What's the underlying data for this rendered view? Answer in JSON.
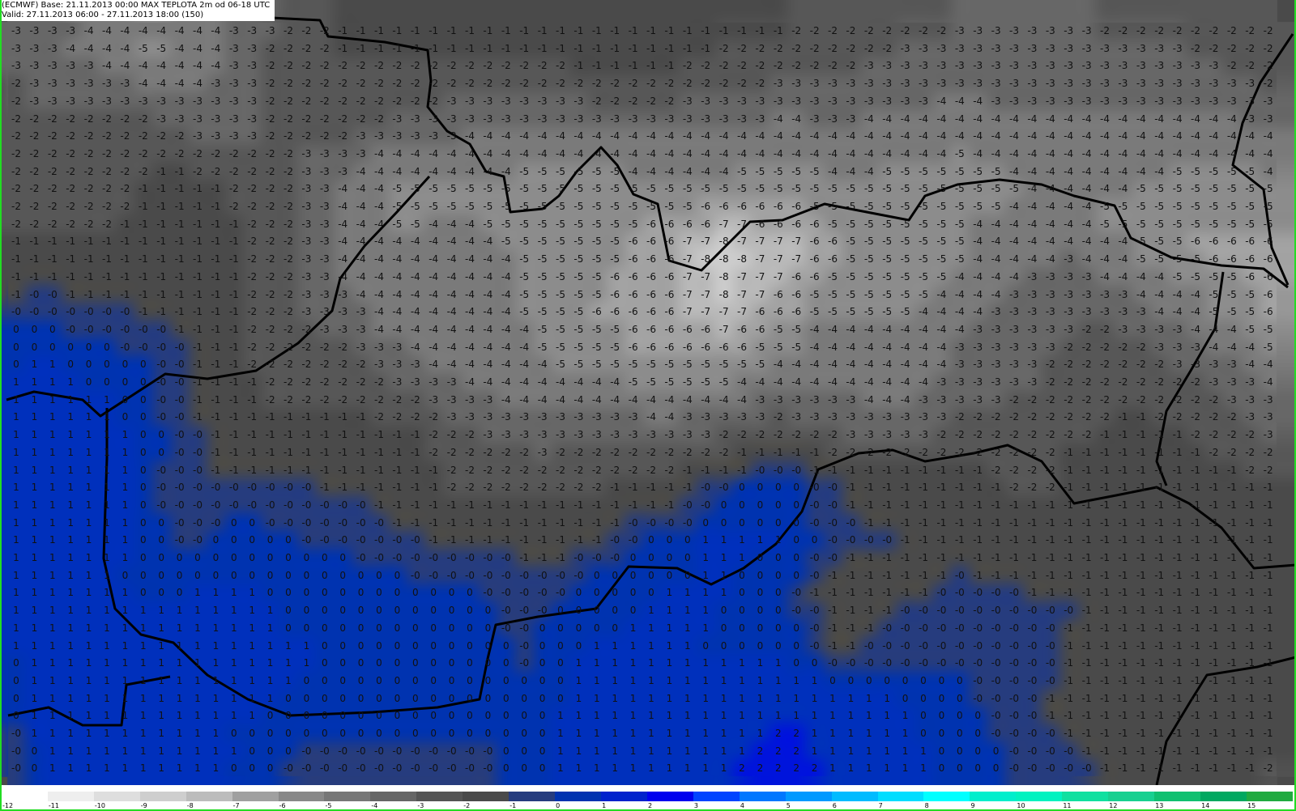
{
  "header": {
    "line1": "(ECMWF) Base: 21.11.2013 00:00 MAX TEPLOTA 2m od 06-18 UTC",
    "line2": "Valid: 27.11.2013 06:00 - 27.11.2013 18:00 (150)"
  },
  "field": {
    "variable": "MAX TEPLOTA 2m",
    "grid_rows": [
      "-3 -3 -3 -3 -4 -4 -4 -4 -4 -4 -4 -4 -3 -3 -3 -2 -2 -2 -1 -1 -1 -1 -1 -1 -1 -1 -1 -1 -1 -1 -1 -1 -1 -1 -1 -1 -1 -1 -1 -1 -1 -1 -1 -2 -2 -2 -2 -2 -2 -2 -2 -2 -3 -3 -3 -3 -3 -3 -3 -3 -2 -2 -2 -2 -2 -2 -2 -2 -2 -2",
      "-3 -3 -3 -4 -4 -4 -4 -5 -5 -4 -4 -4 -3 -3 -2 -2 -2 -2 -1 -1 -1 -1 -1 -1 -1 -1 -1 -1 -1 -1 -1 -1 -1 -1 -1 -1 -1 -1 -1 -2 -2 -2 -2 -2 -2 -2 -2 -2 -2 -3 -3 -3 -3 -3 -3 -3 -3 -3 -3 -3 -3 -3 -3 -3 -3 -2 -2 -2 -2 -2",
      "-3 -3 -3 -3 -3 -4 -4 -4 -4 -4 -4 -4 -3 -3 -2 -2 -2 -2 -2 -2 -2 -2 -2 -2 -2 -2 -2 -2 -2 -2 -2 -1 -1 -1 -1 -1 -1 -2 -2 -2 -2 -2 -2 -2 -2 -2 -2 -3 -3 -3 -3 -3 -3 -3 -3 -3 -3 -3 -3 -3 -3 -3 -3 -3 -3 -3 -3 -2 -2 -2",
      "-2 -3 -3 -3 -3 -3 -3 -4 -4 -4 -4 -3 -3 -3 -2 -2 -2 -2 -2 -2 -2 -2 -2 -2 -2 -2 -2 -2 -2 -2 -2 -2 -2 -2 -2 -2 -2 -2 -2 -2 -2 -2 -3 -3 -3 -3 -3 -3 -3 -3 -3 -3 -3 -3 -3 -3 -3 -3 -3 -3 -3 -3 -3 -3 -3 -3 -3 -3 -3 -2",
      "-2 -3 -3 -3 -3 -3 -3 -3 -3 -3 -3 -3 -3 -3 -2 -2 -2 -2 -2 -2 -2 -2 -2 -2 -3 -3 -3 -3 -3 -3 -3 -3 -2 -2 -2 -2 -2 -3 -3 -3 -3 -3 -3 -3 -3 -3 -3 -3 -3 -3 -3 -4 -4 -4 -3 -3 -3 -3 -3 -3 -3 -3 -3 -3 -3 -3 -3 -3 -3 -3",
      "-2 -2 -2 -2 -2 -2 -2 -2 -3 -3 -3 -3 -3 -3 -2 -2 -2 -2 -2 -2 -2 -3 -3 -3 -3 -3 -3 -3 -3 -3 -3 -3 -3 -3 -3 -3 -3 -3 -3 -3 -3 -3 -4 -4 -3 -3 -3 -4 -4 -4 -4 -4 -4 -4 -4 -4 -4 -4 -4 -4 -4 -4 -4 -4 -4 -4 -4 -4 -3 -3",
      "-2 -2 -2 -2 -2 -2 -2 -2 -2 -2 -3 -3 -3 -3 -2 -2 -2 -2 -2 -3 -3 -3 -3 -3 -3 -4 -4 -4 -4 -4 -4 -4 -4 -4 -4 -4 -4 -4 -4 -4 -4 -4 -4 -4 -4 -4 -4 -4 -4 -4 -4 -4 -4 -4 -4 -4 -4 -4 -4 -4 -4 -4 -4 -4 -4 -4 -4 -4 -4 -4",
      "-2 -2 -2 -2 -2 -2 -2 -2 -2 -2 -2 -2 -2 -2 -2 -2 -3 -3 -3 -3 -4 -4 -4 -4 -4 -4 -4 -4 -4 -4 -4 -4 -4 -4 -4 -4 -4 -4 -4 -4 -4 -4 -4 -4 -4 -4 -4 -4 -4 -4 -4 -4 -5 -4 -4 -4 -4 -4 -4 -4 -4 -4 -4 -4 -4 -4 -4 -4 -4 -4",
      "-2 -2 -2 -2 -2 -2 -2 -2 -1 -1 -2 -2 -2 -2 -2 -2 -3 -3 -3 -4 -4 -4 -4 -4 -4 -4 -4 -4 -5 -5 -5 -5 -5 -5 -4 -4 -4 -4 -4 -4 -5 -5 -5 -5 -5 -4 -4 -4 -5 -5 -5 -5 -5 -5 -5 -4 -4 -4 -4 -4 -4 -4 -4 -4 -5 -5 -5 -5 -5 -4",
      "-2 -2 -2 -2 -2 -2 -2 -1 -1 -1 -1 -1 -2 -2 -2 -2 -3 -3 -4 -4 -4 -5 -5 -5 -5 -5 -5 -5 -5 -5 -5 -5 -5 -5 -5 -5 -5 -5 -5 -5 -5 -5 -5 -5 -5 -5 -5 -5 -5 -5 -5 -5 -5 -5 -5 -5 -4 -4 -4 -4 -4 -4 -5 -5 -5 -5 -5 -5 -5 -5",
      "-2 -2 -2 -2 -2 -2 -2 -1 -1 -1 -1 -1 -2 -2 -2 -2 -3 -3 -4 -4 -4 -5 -5 -5 -5 -5 -5 -5 -5 -5 -5 -5 -5 -5 -5 -5 -5 -5 -6 -6 -6 -6 -6 -6 -5 -5 -5 -5 -5 -5 -5 -5 -5 -5 -5 -4 -4 -4 -4 -4 -5 -5 -5 -5 -5 -5 -5 -5 -5 -5",
      "-2 -2 -2 -2 -2 -2 -1 -1 -1 -1 -1 -1 -1 -2 -2 -2 -3 -3 -4 -4 -4 -5 -5 -4 -4 -4 -5 -5 -5 -5 -5 -5 -5 -5 -5 -6 -6 -6 -6 -7 -7 -6 -6 -6 -6 -5 -5 -5 -5 -5 -5 -5 -5 -4 -4 -4 -4 -4 -4 -4 -5 -5 -5 -5 -5 -5 -5 -5 -5 -5",
      "-1 -1 -1 -1 -1 -1 -1 -1 -1 -1 -1 -1 -1 -2 -2 -2 -3 -3 -4 -4 -4 -4 -4 -4 -4 -4 -4 -5 -5 -5 -5 -5 -5 -5 -6 -6 -6 -7 -7 -8 -7 -7 -7 -7 -6 -6 -5 -5 -5 -5 -5 -5 -5 -4 -4 -4 -4 -4 -4 -4 -4 -4 -5 -5 -5 -6 -6 -6 -6 -6",
      "-1 -1 -1 -1 -1 -1 -1 -1 -1 -1 -1 -1 -1 -2 -2 -2 -3 -3 -4 -4 -4 -4 -4 -4 -4 -4 -4 -4 -5 -5 -5 -5 -5 -5 -6 -6 -6 -7 -8 -8 -8 -7 -7 -7 -6 -6 -5 -5 -5 -5 -5 -5 -5 -4 -4 -4 -4 -4 -3 -4 -4 -4 -5 -5 -5 -5 -6 -6 -6 -6",
      "-1 -1 -1 -1 -1 -1 -1 -1 -1 -1 -1 -1 -1 -2 -2 -2 -3 -3 -4 -4 -4 -4 -4 -4 -4 -4 -4 -4 -5 -5 -5 -5 -5 -6 -6 -6 -6 -7 -7 -8 -7 -7 -7 -6 -6 -5 -5 -5 -5 -5 -5 -5 -4 -4 -4 -4 -3 -3 -3 -3 -4 -4 -4 -4 -5 -5 -5 -5 -6 -6",
      "-1 -0 -0 -1 -1 -1 -1 -1 -1 -1 -1 -1 -1 -2 -2 -2 -3 -3 -3 -4 -4 -4 -4 -4 -4 -4 -4 -4 -5 -5 -5 -5 -5 -6 -6 -6 -6 -7 -7 -8 -7 -7 -6 -6 -5 -5 -5 -5 -5 -5 -5 -4 -4 -4 -4 -3 -3 -3 -3 -3 -3 -3 -4 -4 -4 -4 -5 -5 -5 -6",
      "-0 -0 -0 -0 -0 -0 -0 -1 -1 -1 -1 -1 -1 -2 -2 -2 -3 -3 -3 -3 -4 -4 -4 -4 -4 -4 -4 -4 -5 -5 -5 -5 -6 -6 -6 -6 -6 -7 -7 -7 -7 -6 -6 -6 -5 -5 -5 -5 -5 -5 -4 -4 -4 -4 -3 -3 -3 -3 -3 -3 -3 -3 -3 -4 -4 -4 -5 -5 -5 -6",
      "0 0 0 -0 -0 -0 -0 -0 -0 -1 -1 -1 -1 -2 -2 -2 -2 -3 -3 -3 -4 -4 -4 -4 -4 -4 -4 -4 -4 -5 -5 -5 -5 -5 -6 -6 -6 -6 -6 -7 -6 -6 -5 -5 -4 -4 -4 -4 -4 -4 -4 -4 -4 -3 -3 -3 -3 -3 -3 -2 -2 -3 -3 -3 -3 -4 -4 -4 -5 -5",
      "0 0 0 0 0 0 -0 -0 -0 -0 -1 -1 -1 -2 -2 -2 -2 -2 -2 -3 -3 -3 -4 -4 -4 -4 -4 -4 -4 -5 -5 -5 -5 -5 -6 -6 -6 -6 -6 -6 -6 -5 -5 -5 -4 -4 -4 -4 -4 -4 -4 -4 -3 -3 -3 -3 -3 -3 -2 -2 -2 -2 -2 -3 -3 -3 -4 -4 -4 -5",
      "0 1 1 0 0 0 0 0 -0 -0 -1 -1 -1 -2 -2 -2 -2 -2 -2 -2 -3 -3 -3 -4 -4 -4 -4 -4 -4 -4 -5 -5 -5 -5 -5 -5 -5 -5 -5 -5 -5 -5 -4 -4 -4 -4 -4 -4 -4 -4 -4 -4 -3 -3 -3 -3 -3 -2 -2 -2 -2 -2 -2 -2 -3 -3 -3 -3 -4 -4",
      "1 1 1 1 0 0 0 0 -0 -0 -1 -1 -1 -1 -2 -2 -2 -2 -2 -2 -2 -3 -3 -3 -3 -4 -4 -4 -4 -4 -4 -4 -4 -4 -5 -5 -5 -5 -5 -5 -4 -4 -4 -4 -4 -4 -4 -4 -4 -4 -4 -3 -3 -3 -3 -3 -3 -2 -2 -2 -2 -2 -2 -2 -2 -2 -3 -3 -3 -4",
      "1 1 1 1 1 1 0 0 -0 -0 -1 -1 -1 -1 -2 -2 -2 -2 -2 -2 -2 -2 -2 -3 -3 -3 -3 -4 -4 -4 -4 -4 -4 -4 -4 -4 -4 -4 -4 -4 -4 -3 -3 -3 -3 -3 -3 -4 -4 -4 -3 -3 -3 -3 -3 -2 -2 -2 -2 -2 -2 -2 -2 -2 -2 -2 -2 -3 -3 -3",
      "1 1 1 1 1 1 0 0 -0 -0 -1 -1 -1 -1 -1 -1 -1 -1 -1 -1 -2 -2 -2 -2 -3 -3 -3 -3 -3 -3 -3 -3 -3 -3 -3 -4 -4 -3 -3 -3 -3 -3 -2 -3 -3 -3 -3 -3 -3 -3 -3 -3 -2 -2 -2 -2 -2 -2 -2 -2 -2 -1 -1 -2 -2 -2 -2 -2 -3 -3",
      "1 1 1 1 1 1 1 0 0 -0 -0 -1 -1 -1 -1 -1 -1 -1 -1 -1 -1 -1 -1 -2 -2 -2 -3 -3 -3 -3 -3 -3 -3 -3 -3 -3 -3 -3 -3 -2 -2 -2 -2 -2 -2 -2 -3 -3 -3 -3 -3 -2 -2 -2 -2 -2 -2 -2 -2 -2 -1 -1 -1 -1 -1 -2 -2 -2 -2 -3",
      "1 1 1 1 1 1 1 0 0 -0 -0 -1 -1 -1 -1 -1 -1 -1 -1 -1 -1 -1 -1 -2 -2 -2 -2 -2 -2 -3 -2 -2 -2 -2 -2 -2 -2 -2 -2 -2 -1 -1 -1 -1 -1 -2 -2 -2 -2 -2 -2 -2 -2 -2 -2 -2 -2 -2 -1 -1 -1 -1 -1 -1 -1 -1 -2 -2 -2 -2",
      "1 1 1 1 1 1 1 0 -0 -0 -0 -1 -1 -1 -1 -1 -1 -1 -1 -1 -1 -1 -1 -1 -2 -2 -2 -2 -2 -2 -2 -2 -2 -2 -2 -2 -2 -1 -1 -1 -1 -0 -0 -0 -1 -1 -1 -1 -1 -1 -1 -1 -1 -1 -2 -2 -2 -2 -1 -1 -1 -1 -1 -1 -1 -1 -1 -1 -2 -2",
      "1 1 1 1 1 1 1 0 -0 -0 -0 -0 -0 -0 -0 -0 -0 -1 -1 -1 -1 -1 -1 -1 -2 -2 -2 -2 -2 -2 -2 -2 -2 -1 -1 -1 -1 -1 -0 -0 0 0 0 0 -0 -0 -1 -1 -1 -1 -1 -1 -1 -1 -1 -2 -2 -2 -1 -1 -1 -1 -1 -1 -1 -1 -1 -1 -1 -1",
      "1 1 1 1 1 1 1 0 -0 -0 -0 -0 -0 -0 -0 -0 -0 -0 -0 -0 -1 -1 -1 -1 -1 -1 -1 -1 -1 -1 -1 -1 -1 -1 -1 -1 -1 -0 -0 0 0 0 0 0 -0 -0 -1 -1 -1 -1 -1 -1 -1 -1 -1 -1 -1 -1 -1 -1 -1 -1 -1 -1 -1 -1 -1 -1 -1 -1",
      "1 1 1 1 1 1 1 0 0 -0 -0 -0 0 0 -0 -0 -0 -0 -0 -0 -0 -1 -1 -1 -1 -1 -1 -1 -1 -1 -1 -1 -1 -1 -0 -0 -0 -0 0 0 0 0 0 0 -0 -0 -0 -1 -1 -1 -1 -1 -1 -1 -1 -1 -1 -1 -1 -1 -1 -1 -1 -1 -1 -1 -1 -1 -1 -1",
      "1 1 1 1 1 1 1 0 0 -0 -0 0 0 0 0 0 -0 -0 -0 -0 -0 -0 -0 -1 -1 -1 -1 -1 -1 -1 -1 -1 -1 -0 -0 0 0 0 1 1 1 1 1 0 0 -0 -0 -0 -0 -1 -1 -1 -1 -1 -1 -1 -1 -1 -1 -1 -1 -1 -1 -1 -1 -1 -1 -1 -1 -1",
      "1 1 1 1 1 1 1 0 0 0 0 0 0 0 0 0 0 0 0 -0 -0 -0 -0 -0 -0 -0 -0 -0 -1 -1 -1 -0 -0 -0 0 0 0 0 1 1 1 0 0 0 -0 -0 -1 -1 -1 -1 -1 -1 -1 -1 -1 -1 -1 -1 -1 -1 -1 -1 -1 -1 -1 -1 -1 -1 -1 -1",
      "1 1 1 1 1 1 0 0 0 0 0 0 0 0 0 0 0 0 0 0 0 0 -0 -0 -0 -0 -0 -0 -0 -0 -0 -0 0 0 0 0 0 0 1 1 0 0 0 0 -0 -1 -1 -1 -1 -1 -1 -1 -0 -1 -1 -1 -1 -1 -1 -1 -1 -1 -1 -1 -1 -1 -1 -1 -1 -1",
      "1 1 1 1 1 1 1 0 0 0 1 1 1 1 0 0 0 0 0 0 0 0 0 0 0 0 -0 -0 -0 -0 -0 0 0 0 0 0 1 1 1 1 0 0 0 -0 -1 -1 -1 -1 -1 -1 -1 -0 -0 -0 -0 -0 -1 -1 -1 -1 -1 -1 -1 -1 -1 -1 -1 -1 -1 -1",
      "1 1 1 1 1 1 1 1 1 1 1 1 1 1 1 0 0 0 0 0 0 0 0 0 0 0 0 -0 -0 -0 0 0 0 0 0 1 1 1 1 0 0 0 0 -0 -0 -1 -1 -1 -1 -0 -0 -0 -0 -0 -0 -0 -0 -0 -0 -1 -1 -1 -1 -1 -1 -1 -1 -1 -1 -1",
      "1 1 1 1 1 1 1 1 1 1 1 1 1 1 1 0 0 0 0 0 0 0 0 0 0 0 0 -0 -0 0 0 0 0 0 1 1 1 1 1 0 0 0 0 0 -0 -1 -1 -1 -0 -0 -0 -0 -0 -0 -0 -0 -0 -0 -1 -1 -1 -1 -1 -1 -1 -1 -1 -1 -1 -1",
      "1 1 1 1 1 1 1 1 1 1 1 1 1 1 1 1 1 0 0 0 0 0 0 0 0 0 0 0 -0 0 0 0 1 1 1 1 1 1 0 0 0 0 0 0 -0 -1 -1 -0 -0 -0 -0 -0 -0 -0 -0 -0 -0 -0 -1 -1 -1 -1 -1 -1 -1 -1 -1 -1 -1 -1",
      "0 1 1 1 1 1 1 1 1 1 1 1 1 1 1 1 1 0 0 0 0 0 0 0 0 0 0 0 -0 0 0 1 1 1 1 1 1 1 1 1 1 1 1 0 0 -0 -0 -0 -0 -0 -0 -0 -0 -0 -0 -0 -0 -0 -1 -1 -1 -1 -1 -1 -1 -1 -1 -1 -1 -1",
      "0 1 1 1 1 1 1 1 1 1 1 1 1 1 1 1 0 0 0 0 0 0 0 0 0 0 0 0 0 0 0 1 1 1 1 1 1 1 1 1 1 1 1 1 1 0 0 0 0 0 0 0 0 -0 -0 -0 -0 -0 -1 -1 -1 -1 -1 -1 -1 -1 -1 -1 -1 -1",
      "0 1 1 1 1 1 1 1 1 1 1 1 1 1 1 0 0 0 0 0 0 0 0 0 0 0 0 0 0 0 0 1 1 1 1 1 1 1 1 1 1 1 1 1 1 1 1 1 1 0 0 0 0 -0 -0 -0 -0 -1 -1 -1 -1 -1 -1 -1 -1 -1 -1 -1 -1 -1",
      "0 1 1 1 1 1 1 1 1 1 1 1 1 1 0 0 0 0 0 0 0 0 0 0 0 0 0 0 0 0 1 1 1 1 1 1 1 1 1 1 1 1 1 1 1 1 1 1 1 1 0 0 0 0 -0 -0 -0 -1 -1 -1 -1 -1 -1 -1 -1 -1 -1 -1 -1 -1",
      "-0 1 1 1 1 1 1 1 1 1 1 1 0 0 0 0 0 0 0 0 0 0 0 0 0 0 0 0 0 0 1 1 1 1 1 1 1 1 1 1 1 1 2 2 1 1 1 1 1 1 0 0 0 0 -0 -0 -0 -0 -1 -1 -1 -1 -1 -1 -1 -1 -1 -1 -1 -1",
      "-0 0 1 1 1 1 1 1 1 1 1 1 1 0 0 0 -0 -0 -0 -0 -0 -0 -0 -0 -0 -0 -0 0 0 0 1 1 1 1 1 1 1 1 1 1 1 2 2 2 1 1 1 1 1 1 1 0 0 0 0 -0 -0 -0 -0 -1 -1 -1 -1 -1 -1 -1 -1 -1 -1 -1",
      "-0 0 1 1 1 1 1 1 1 1 1 1 0 0 0 -0 -0 -0 -0 -0 -0 -0 -0 -0 -0 -0 -0 0 0 0 1 1 1 1 1 1 1 1 1 1 2 2 2 2 2 1 1 1 1 1 1 0 0 0 0 -0 -0 -0 -0 -0 -1 -1 -1 -1 -1 -1 -1 -1 -1 -2"
    ],
    "value_colors": {
      "-8": "#cdcdcd",
      "-7": "#b9b9b9",
      "-6": "#a2a2a2",
      "-5": "#8c8c8c",
      "-4": "#7a7a7a",
      "-3": "#676767",
      "-2": "#575757",
      "-1": "#4a4a4a",
      "-0": "#263c7e",
      "0": "#0033b0",
      "1": "#0030bc",
      "2": "#0014dc"
    }
  },
  "colorbar": {
    "labels": [
      "-12",
      "-11",
      "-10",
      "-9",
      "-8",
      "-7",
      "-6",
      "-5",
      "-4",
      "-3",
      "-2",
      "-1",
      "0",
      "1",
      "2",
      "3",
      "4",
      "5",
      "6",
      "7",
      "8",
      "9",
      "10",
      "11",
      "12",
      "13",
      "14",
      "15"
    ],
    "colors": [
      "#ffffff",
      "#eeeeee",
      "#dedede",
      "#cecece",
      "#bcbcbc",
      "#a0a0a0",
      "#888888",
      "#777777",
      "#666666",
      "#555555",
      "#4a4a4a",
      "#263c7e",
      "#0033b0",
      "#0022cc",
      "#0000ee",
      "#0044ff",
      "#0077ff",
      "#0099ff",
      "#00bbff",
      "#00ddff",
      "#00ffff",
      "#00eecc",
      "#00f2c0",
      "#10e0a0",
      "#18d090",
      "#10c070",
      "#00a860",
      "#20aa40"
    ]
  }
}
